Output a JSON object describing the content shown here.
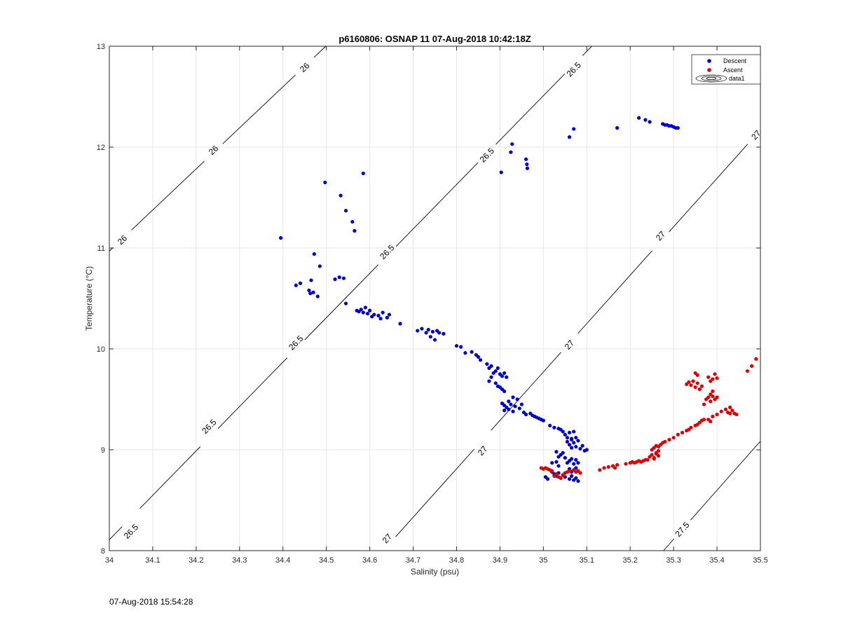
{
  "chart_data": {
    "type": "scatter",
    "title": "p6160806: OSNAP 11 07-Aug-2018 10:42:18Z",
    "xlabel": "Salinity (psu)",
    "ylabel": "Temperature (°C)",
    "xlim": [
      34,
      35.5
    ],
    "ylim": [
      8,
      13
    ],
    "xticks": [
      "34",
      "34.1",
      "34.2",
      "34.3",
      "34.4",
      "34.5",
      "34.6",
      "34.7",
      "34.8",
      "34.9",
      "35",
      "35.1",
      "35.2",
      "35.3",
      "35.4",
      "35.5"
    ],
    "yticks": [
      "8",
      "9",
      "10",
      "11",
      "12",
      "13"
    ],
    "grid": true,
    "legend_position": "top-right",
    "legend": [
      "Descent",
      "Ascent",
      "data1"
    ],
    "colors": {
      "descent": "#0000cc",
      "ascent": "#dd0000",
      "contour": "#000000",
      "grid": "#e6e6e6"
    },
    "contours": [
      {
        "label": "26",
        "label_positions": [
          [
            34.45,
            12.79
          ],
          [
            34.24,
            11.97
          ],
          [
            34.03,
            11.08
          ]
        ]
      },
      {
        "label": "26.5",
        "label_positions": [
          [
            35.07,
            12.77
          ],
          [
            34.87,
            11.92
          ],
          [
            34.64,
            10.96
          ],
          [
            34.43,
            10.06
          ],
          [
            34.23,
            9.23
          ],
          [
            34.05,
            8.19
          ]
        ]
      },
      {
        "label": "27",
        "label_positions": [
          [
            35.49,
            12.12
          ],
          [
            35.27,
            11.12
          ],
          [
            35.06,
            10.04
          ],
          [
            34.86,
            8.99
          ],
          [
            34.64,
            8.12
          ]
        ]
      },
      {
        "label": "27.5",
        "label_positions": [
          [
            35.32,
            8.21
          ]
        ]
      }
    ],
    "series": [
      {
        "name": "Descent",
        "points": [
          [
            34.395,
            11.1
          ],
          [
            34.497,
            11.65
          ],
          [
            34.533,
            11.52
          ],
          [
            34.545,
            11.37
          ],
          [
            34.56,
            11.26
          ],
          [
            34.565,
            11.17
          ],
          [
            34.585,
            11.74
          ],
          [
            34.43,
            10.63
          ],
          [
            34.44,
            10.65
          ],
          [
            34.46,
            10.58
          ],
          [
            34.465,
            10.68
          ],
          [
            34.463,
            10.55
          ],
          [
            34.47,
            10.56
          ],
          [
            34.472,
            10.94
          ],
          [
            34.48,
            10.52
          ],
          [
            34.485,
            10.82
          ],
          [
            34.52,
            10.69
          ],
          [
            34.53,
            10.71
          ],
          [
            34.54,
            10.7
          ],
          [
            34.545,
            10.45
          ],
          [
            34.57,
            10.38
          ],
          [
            34.575,
            10.37
          ],
          [
            34.58,
            10.39
          ],
          [
            34.585,
            10.36
          ],
          [
            34.59,
            10.41
          ],
          [
            34.595,
            10.35
          ],
          [
            34.6,
            10.38
          ],
          [
            34.605,
            10.32
          ],
          [
            34.61,
            10.34
          ],
          [
            34.62,
            10.33
          ],
          [
            34.625,
            10.3
          ],
          [
            34.63,
            10.36
          ],
          [
            34.64,
            10.31
          ],
          [
            34.645,
            10.34
          ],
          [
            34.67,
            10.25
          ],
          [
            34.71,
            10.18
          ],
          [
            34.72,
            10.2
          ],
          [
            34.73,
            10.16
          ],
          [
            34.735,
            10.19
          ],
          [
            34.74,
            10.12
          ],
          [
            34.745,
            10.17
          ],
          [
            34.75,
            10.09
          ],
          [
            34.755,
            10.18
          ],
          [
            34.76,
            10.16
          ],
          [
            34.77,
            10.15
          ],
          [
            34.8,
            10.03
          ],
          [
            34.81,
            10.02
          ],
          [
            34.82,
            9.96
          ],
          [
            34.835,
            9.97
          ],
          [
            34.845,
            9.94
          ],
          [
            34.85,
            9.92
          ],
          [
            34.855,
            9.89
          ],
          [
            34.87,
            9.85
          ],
          [
            34.875,
            9.81
          ],
          [
            34.88,
            9.83
          ],
          [
            34.885,
            9.76
          ],
          [
            34.89,
            9.78
          ],
          [
            34.895,
            9.81
          ],
          [
            34.9,
            9.75
          ],
          [
            34.905,
            9.73
          ],
          [
            34.91,
            9.76
          ],
          [
            34.915,
            9.72
          ],
          [
            34.875,
            9.68
          ],
          [
            34.88,
            9.72
          ],
          [
            34.89,
            9.66
          ],
          [
            34.895,
            9.63
          ],
          [
            34.9,
            9.62
          ],
          [
            34.905,
            9.6
          ],
          [
            34.91,
            9.58
          ],
          [
            34.905,
            9.46
          ],
          [
            34.91,
            9.44
          ],
          [
            34.915,
            9.42
          ],
          [
            34.92,
            9.48
          ],
          [
            34.925,
            9.45
          ],
          [
            34.93,
            9.52
          ],
          [
            34.935,
            9.43
          ],
          [
            34.94,
            9.5
          ],
          [
            34.945,
            9.41
          ],
          [
            34.95,
            9.45
          ],
          [
            34.91,
            9.39
          ],
          [
            34.92,
            9.4
          ],
          [
            34.93,
            9.38
          ],
          [
            34.955,
            9.37
          ],
          [
            34.96,
            9.35
          ],
          [
            34.97,
            9.36
          ],
          [
            34.975,
            9.34
          ],
          [
            34.98,
            9.33
          ],
          [
            34.985,
            9.32
          ],
          [
            34.99,
            9.31
          ],
          [
            34.995,
            9.3
          ],
          [
            35.0,
            9.29
          ],
          [
            35.015,
            9.24
          ],
          [
            35.025,
            9.22
          ],
          [
            35.035,
            9.21
          ],
          [
            35.04,
            9.2
          ],
          [
            35.045,
            9.18
          ],
          [
            35.05,
            9.15
          ],
          [
            35.055,
            9.12
          ],
          [
            35.06,
            9.17
          ],
          [
            35.065,
            9.11
          ],
          [
            35.07,
            9.18
          ],
          [
            35.055,
            9.08
          ],
          [
            35.06,
            9.05
          ],
          [
            35.065,
            9.02
          ],
          [
            35.07,
            9.07
          ],
          [
            35.075,
            9.03
          ],
          [
            35.08,
            9.09
          ],
          [
            35.085,
            9.01
          ],
          [
            35.09,
            9.04
          ],
          [
            35.095,
            8.99
          ],
          [
            35.1,
            9.0
          ],
          [
            35.065,
            9.1
          ],
          [
            35.075,
            9.12
          ],
          [
            35.03,
            8.98
          ],
          [
            35.035,
            8.93
          ],
          [
            35.04,
            8.95
          ],
          [
            35.045,
            8.97
          ],
          [
            35.05,
            8.92
          ],
          [
            35.02,
            8.87
          ],
          [
            35.03,
            8.88
          ],
          [
            35.035,
            8.84
          ],
          [
            35.055,
            8.87
          ],
          [
            35.06,
            8.89
          ],
          [
            35.065,
            8.91
          ],
          [
            35.07,
            8.86
          ],
          [
            35.075,
            8.9
          ],
          [
            35.08,
            8.87
          ],
          [
            35.015,
            8.8
          ],
          [
            35.02,
            8.78
          ],
          [
            35.025,
            8.76
          ],
          [
            35.03,
            8.74
          ],
          [
            35.035,
            8.77
          ],
          [
            35.04,
            8.72
          ],
          [
            35.045,
            8.75
          ],
          [
            35.05,
            8.73
          ],
          [
            35.06,
            8.71
          ],
          [
            35.065,
            8.74
          ],
          [
            35.07,
            8.7
          ],
          [
            35.075,
            8.72
          ],
          [
            35.08,
            8.69
          ],
          [
            35.01,
            8.71
          ],
          [
            35.005,
            8.73
          ],
          [
            35.06,
            8.81
          ],
          [
            35.065,
            8.78
          ],
          [
            35.07,
            8.8
          ],
          [
            35.075,
            8.82
          ],
          [
            35.08,
            8.79
          ],
          [
            34.903,
            11.75
          ],
          [
            34.925,
            11.95
          ],
          [
            34.928,
            12.03
          ],
          [
            34.96,
            11.88
          ],
          [
            34.962,
            11.83
          ],
          [
            34.963,
            11.79
          ],
          [
            35.06,
            12.1
          ],
          [
            35.07,
            12.18
          ],
          [
            35.17,
            12.19
          ],
          [
            35.22,
            12.29
          ],
          [
            35.235,
            12.27
          ],
          [
            35.245,
            12.25
          ],
          [
            35.275,
            12.23
          ],
          [
            35.28,
            12.22
          ],
          [
            35.285,
            12.22
          ],
          [
            35.29,
            12.21
          ],
          [
            35.295,
            12.21
          ],
          [
            35.3,
            12.2
          ],
          [
            35.305,
            12.19
          ],
          [
            35.31,
            12.19
          ]
        ]
      },
      {
        "name": "Ascent",
        "points": [
          [
            34.995,
            8.82
          ],
          [
            35.0,
            8.81
          ],
          [
            35.005,
            8.82
          ],
          [
            35.01,
            8.81
          ],
          [
            35.015,
            8.8
          ],
          [
            35.02,
            8.79
          ],
          [
            35.025,
            8.74
          ],
          [
            35.03,
            8.76
          ],
          [
            35.035,
            8.73
          ],
          [
            35.04,
            8.72
          ],
          [
            35.045,
            8.75
          ],
          [
            35.05,
            8.77
          ],
          [
            35.055,
            8.78
          ],
          [
            35.06,
            8.79
          ],
          [
            35.07,
            8.8
          ],
          [
            35.075,
            8.78
          ],
          [
            35.08,
            8.79
          ],
          [
            35.085,
            8.77
          ],
          [
            35.13,
            8.8
          ],
          [
            35.14,
            8.82
          ],
          [
            35.15,
            8.83
          ],
          [
            35.16,
            8.84
          ],
          [
            35.165,
            8.82
          ],
          [
            35.17,
            8.85
          ],
          [
            35.19,
            8.86
          ],
          [
            35.2,
            8.87
          ],
          [
            35.205,
            8.88
          ],
          [
            35.21,
            8.87
          ],
          [
            35.215,
            8.88
          ],
          [
            35.22,
            8.89
          ],
          [
            35.225,
            8.88
          ],
          [
            35.23,
            8.89
          ],
          [
            35.235,
            8.9
          ],
          [
            35.24,
            8.9
          ],
          [
            35.245,
            8.93
          ],
          [
            35.25,
            8.95
          ],
          [
            35.255,
            8.92
          ],
          [
            35.26,
            8.97
          ],
          [
            35.265,
            8.94
          ],
          [
            35.25,
            9.0
          ],
          [
            35.255,
            9.02
          ],
          [
            35.26,
            9.04
          ],
          [
            35.265,
            9.03
          ],
          [
            35.27,
            9.05
          ],
          [
            35.275,
            9.07
          ],
          [
            35.28,
            9.08
          ],
          [
            35.26,
            8.96
          ],
          [
            35.255,
            8.91
          ],
          [
            35.265,
            8.99
          ],
          [
            35.29,
            9.1
          ],
          [
            35.3,
            9.12
          ],
          [
            35.31,
            9.15
          ],
          [
            35.32,
            9.17
          ],
          [
            35.33,
            9.19
          ],
          [
            35.335,
            9.2
          ],
          [
            35.34,
            9.22
          ],
          [
            35.35,
            9.24
          ],
          [
            35.355,
            9.25
          ],
          [
            35.36,
            9.27
          ],
          [
            35.365,
            9.29
          ],
          [
            35.37,
            9.3
          ],
          [
            35.38,
            9.3
          ],
          [
            35.385,
            9.28
          ],
          [
            35.39,
            9.33
          ],
          [
            35.4,
            9.35
          ],
          [
            35.41,
            9.38
          ],
          [
            35.42,
            9.4
          ],
          [
            35.425,
            9.37
          ],
          [
            35.43,
            9.42
          ],
          [
            35.435,
            9.39
          ],
          [
            35.44,
            9.36
          ],
          [
            35.445,
            9.35
          ],
          [
            35.43,
            9.36
          ],
          [
            35.37,
            9.45
          ],
          [
            35.375,
            9.5
          ],
          [
            35.38,
            9.52
          ],
          [
            35.385,
            9.55
          ],
          [
            35.39,
            9.53
          ],
          [
            35.395,
            9.5
          ],
          [
            35.39,
            9.58
          ],
          [
            35.4,
            9.52
          ],
          [
            35.385,
            9.48
          ],
          [
            35.33,
            9.65
          ],
          [
            35.335,
            9.67
          ],
          [
            35.34,
            9.64
          ],
          [
            35.345,
            9.68
          ],
          [
            35.35,
            9.62
          ],
          [
            35.355,
            9.66
          ],
          [
            35.36,
            9.6
          ],
          [
            35.365,
            9.63
          ],
          [
            35.35,
            9.76
          ],
          [
            35.355,
            9.74
          ],
          [
            35.38,
            9.72
          ],
          [
            35.385,
            9.68
          ],
          [
            35.39,
            9.7
          ],
          [
            35.395,
            9.75
          ],
          [
            35.4,
            9.71
          ],
          [
            35.47,
            9.78
          ],
          [
            35.48,
            9.83
          ],
          [
            35.49,
            9.9
          ]
        ]
      }
    ]
  },
  "footer": {
    "timestamp": "07-Aug-2018 15:54:28"
  }
}
